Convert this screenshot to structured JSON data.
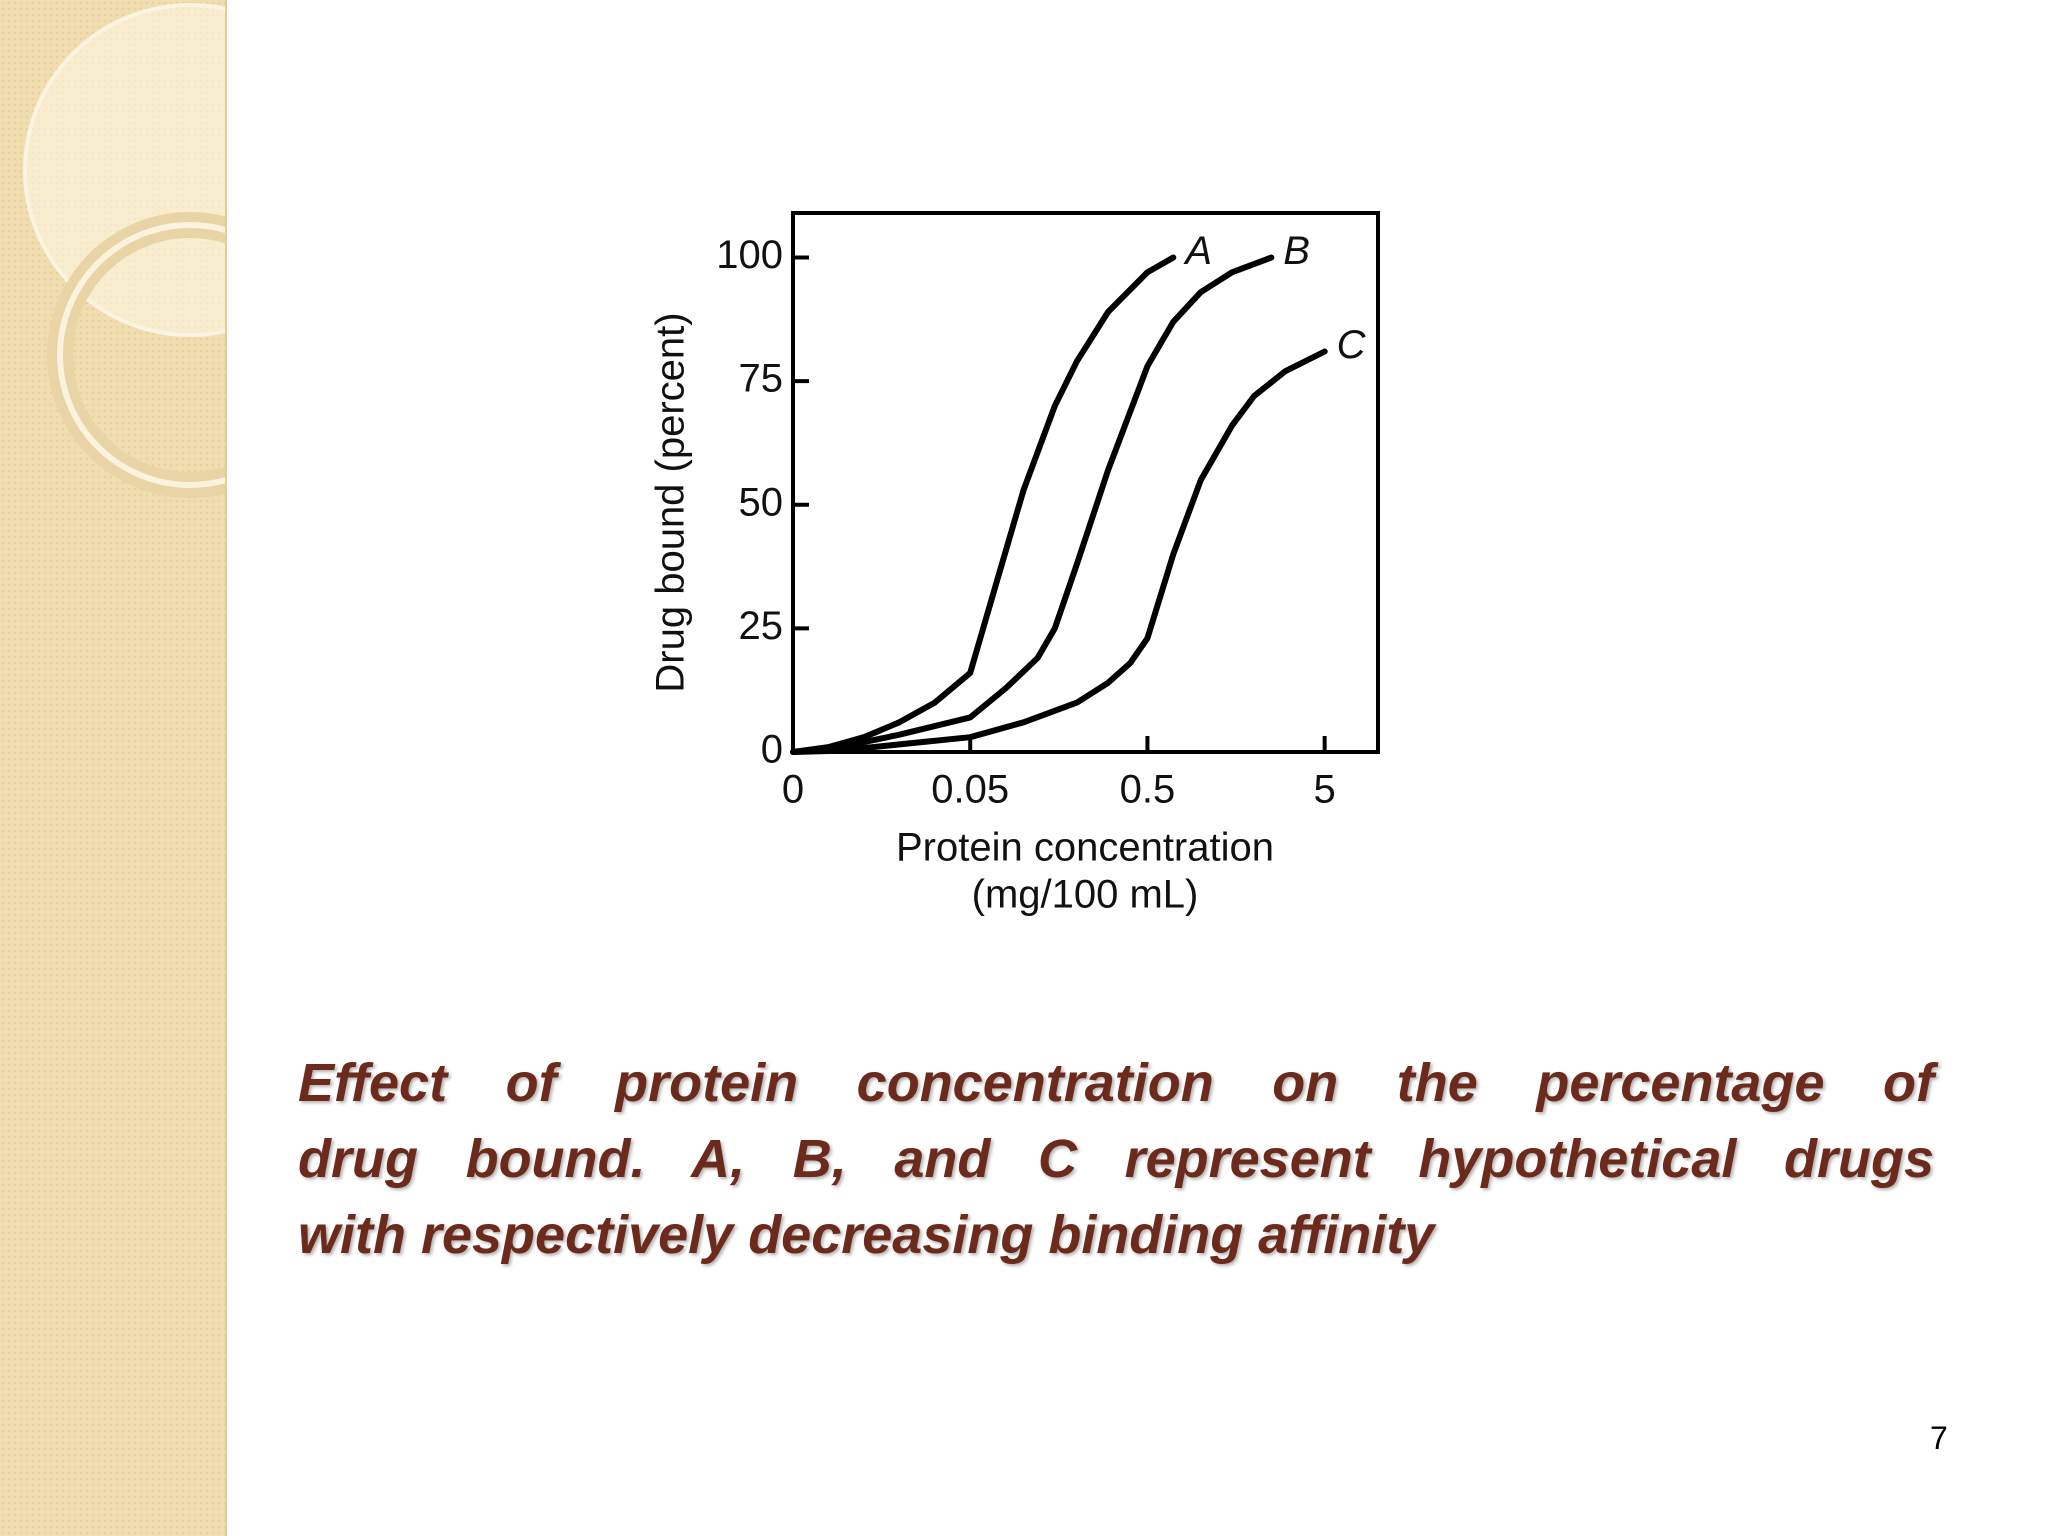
{
  "chart_data": {
    "type": "line",
    "x_label": [
      "Protein concentration",
      "(mg/100 mL)"
    ],
    "y_label": "Drug bound (percent)",
    "xlim": [
      0,
      10
    ],
    "xticks": [
      0,
      0.05,
      0.5,
      5
    ],
    "ylim": [
      0,
      109
    ],
    "yticks": [
      0,
      25,
      50,
      75,
      100
    ],
    "series": [
      {
        "name": "A",
        "color": "#000000",
        "x": [
          0,
          0.01,
          0.02,
          0.03,
          0.04,
          0.05,
          0.07,
          0.1,
          0.15,
          0.2,
          0.3,
          0.5,
          0.7
        ],
        "values": [
          0,
          1,
          3,
          6,
          10,
          16,
          34,
          53,
          70,
          79,
          89,
          97,
          100
        ]
      },
      {
        "name": "B",
        "color": "#000000",
        "x": [
          0,
          0.01,
          0.02,
          0.03,
          0.05,
          0.08,
          0.12,
          0.15,
          0.2,
          0.3,
          0.5,
          0.7,
          1,
          1.5,
          2.5
        ],
        "values": [
          0,
          0.5,
          2,
          3.5,
          7,
          13,
          19,
          25,
          38,
          57,
          78,
          87,
          93,
          97,
          100
        ]
      },
      {
        "name": "C",
        "color": "#000000",
        "x": [
          0,
          0.01,
          0.02,
          0.05,
          0.1,
          0.2,
          0.3,
          0.4,
          0.5,
          0.7,
          1,
          1.5,
          2,
          3,
          5
        ],
        "values": [
          0,
          0.2,
          0.8,
          3,
          6,
          10,
          14,
          18,
          23,
          40,
          55,
          66,
          72,
          77,
          81
        ]
      }
    ]
  },
  "caption": [
    "Effect of protein concentration on the percentage of",
    "drug bound. A, B, and C represent hypothetical drugs",
    "with respectively decreasing binding affinity"
  ],
  "page_number": "7"
}
